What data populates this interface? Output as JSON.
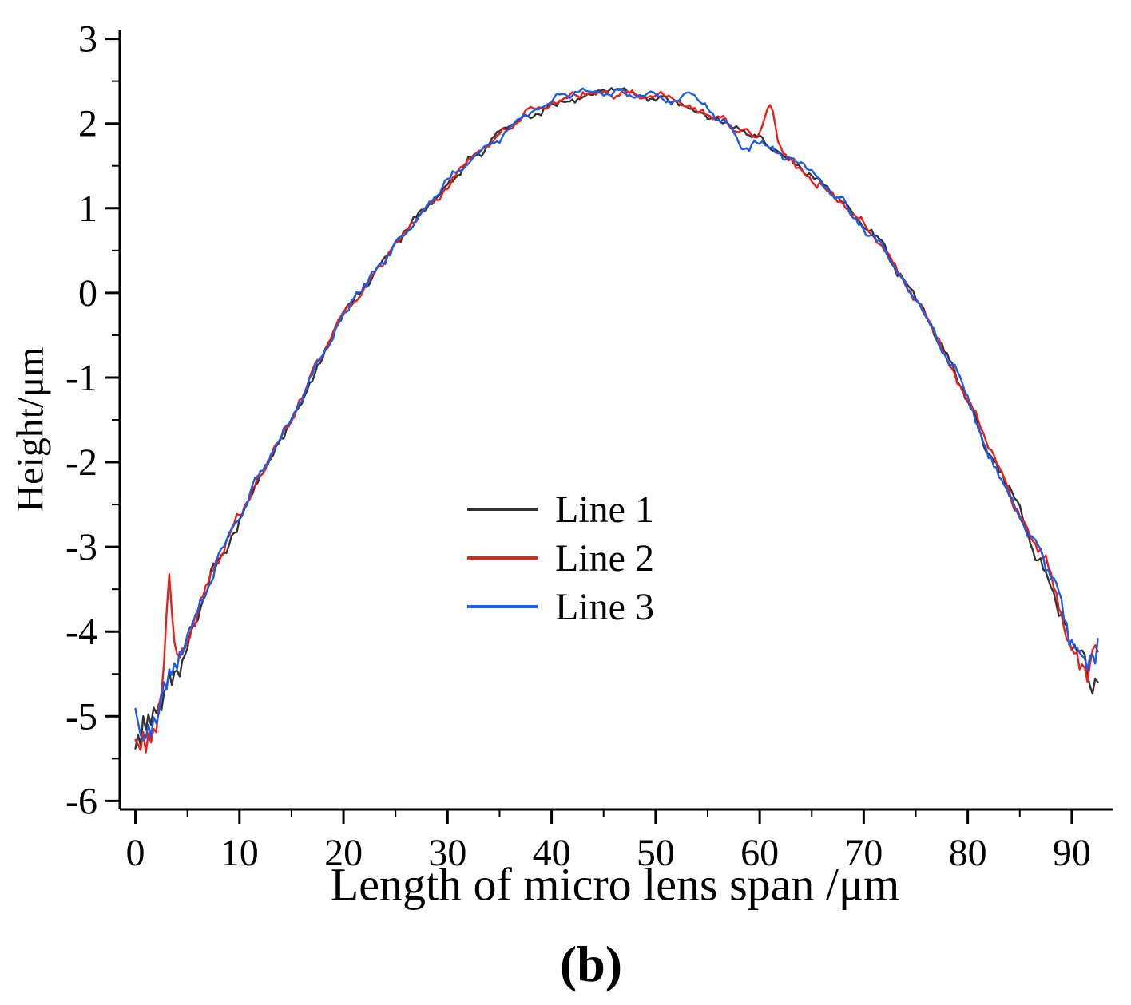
{
  "chart_data": {
    "type": "line",
    "title": "",
    "xlabel": "Length of micro lens span /μm",
    "ylabel": "Height/μm",
    "caption": "(b)",
    "grid": false,
    "legend_position": "inside-center",
    "x_range": [
      -1.5,
      94
    ],
    "y_range": [
      -6.1,
      3.1
    ],
    "x_major_ticks": [
      0,
      10,
      20,
      30,
      40,
      50,
      60,
      70,
      80,
      90
    ],
    "x_minor_ticks": [
      5,
      15,
      25,
      35,
      45,
      55,
      65,
      75,
      85
    ],
    "y_major_ticks": [
      -6,
      -5,
      -4,
      -3,
      -2,
      -1,
      0,
      1,
      2,
      3
    ],
    "y_minor_ticks": [
      -5.5,
      -4.5,
      -3.5,
      -2.5,
      -1.5,
      -0.5,
      0.5,
      1.5,
      2.5
    ],
    "sampling": {
      "x_start": 0,
      "x_end": 92.5,
      "x_step": 0.25
    },
    "noise": {
      "mid_amp": 0.055,
      "left_edge_amp": 0.28,
      "left_decay": 3.5,
      "right_edge_amp": 0.2,
      "right_decay": 4.5,
      "fine_fraction": 0.5
    },
    "profile_anchors": {
      "x": [
        0,
        1,
        2.5,
        4,
        6,
        8,
        10,
        12.5,
        15,
        17.5,
        20,
        22.5,
        25,
        27.5,
        30,
        32.5,
        35,
        37.5,
        40,
        42.5,
        45,
        47.5,
        50,
        52.5,
        55,
        57.5,
        60,
        62.5,
        65,
        67.5,
        70,
        72.5,
        75,
        77.5,
        80,
        82.5,
        85,
        87.5,
        90,
        92.5
      ],
      "y": [
        -5.55,
        -5.2,
        -4.75,
        -4.35,
        -3.8,
        -3.1,
        -2.65,
        -2.05,
        -1.55,
        -0.85,
        -0.25,
        0.15,
        0.6,
        0.95,
        1.3,
        1.6,
        1.85,
        2.08,
        2.25,
        2.33,
        2.36,
        2.35,
        2.3,
        2.22,
        2.12,
        1.98,
        1.8,
        1.62,
        1.4,
        1.12,
        0.8,
        0.42,
        -0.05,
        -0.6,
        -1.25,
        -1.95,
        -2.6,
        -3.3,
        -4.05,
        -4.7
      ]
    },
    "series": [
      {
        "name": "Line 1",
        "color": "#333333",
        "seed": 101,
        "spikes": []
      },
      {
        "name": "Line 2",
        "color": "#e82019",
        "seed": 202,
        "spikes": [
          {
            "x": 3.2,
            "dy": 1.15,
            "w": 0.45
          },
          {
            "x": 61,
            "dy": 0.5,
            "w": 0.7
          }
        ]
      },
      {
        "name": "Line 3",
        "color": "#1b5ce8",
        "seed": 303,
        "spikes": [
          {
            "x": 53.5,
            "dy": 0.16,
            "w": 1.5
          },
          {
            "x": 58.5,
            "dy": -0.18,
            "w": 0.9
          }
        ]
      }
    ]
  }
}
